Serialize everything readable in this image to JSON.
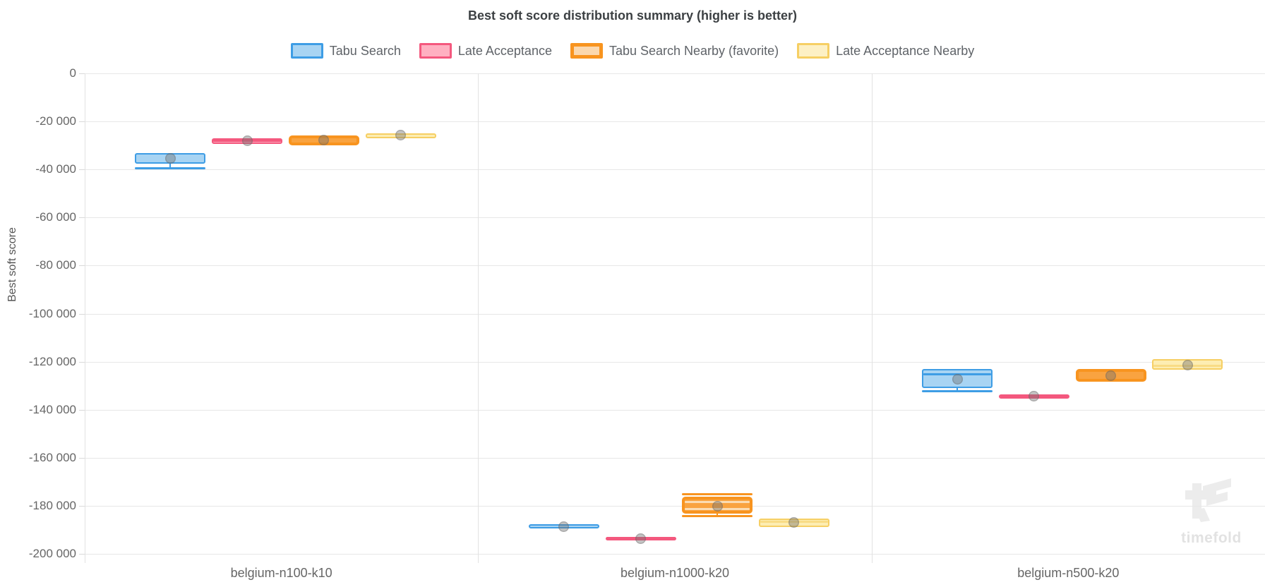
{
  "watermark": {
    "text": "timefold"
  },
  "chart_data": {
    "type": "boxplot",
    "title": "Best soft score distribution summary (higher is better)",
    "ylabel": "Best soft score",
    "xlabel": "",
    "ylim": [
      -200000,
      0
    ],
    "ytick_step": 20000,
    "ytick_labels": [
      "0",
      "-20 000",
      "-40 000",
      "-60 000",
      "-80 000",
      "-100 000",
      "-120 000",
      "-140 000",
      "-160 000",
      "-180 000",
      "-200 000"
    ],
    "grid": true,
    "legend_position": "top",
    "categories": [
      "belgium-n100-k10",
      "belgium-n1000-k20",
      "belgium-n500-k20"
    ],
    "series": [
      {
        "name": "Tabu Search",
        "border_color": "#3E9DE5",
        "fill_color": "#A8D4F3",
        "median_color": "#3E9DE5",
        "border_px": 2,
        "swatch_fill": "#A8D4F3",
        "swatch_border_px": 3
      },
      {
        "name": "Late Acceptance",
        "border_color": "#F4587E",
        "fill_color": "#FBA9BC",
        "median_color": "#F4587E",
        "border_px": 2,
        "swatch_fill": "#FFB0C1",
        "swatch_border_px": 3
      },
      {
        "name": "Tabu Search Nearby (favorite)",
        "border_color": "#F8941F",
        "fill_color": "#F9A340",
        "median_color": "#FBDCB2",
        "border_px": 4,
        "swatch_fill": "#FBD8AE",
        "swatch_border_px": 5
      },
      {
        "name": "Late Acceptance Nearby",
        "border_color": "#F6CF64",
        "fill_color": "#FDEDB2",
        "median_color": "#F8DC86",
        "border_px": 2,
        "swatch_fill": "#FDF0C4",
        "swatch_border_px": 3
      }
    ],
    "boxes": [
      {
        "category": "belgium-n100-k10",
        "series": "Tabu Search",
        "q3": -33100,
        "median": null,
        "q1": -37600,
        "whisker_max": null,
        "whisker_min": -39400,
        "inner_line": null,
        "mean": -35500
      },
      {
        "category": "belgium-n100-k10",
        "series": "Late Acceptance",
        "q3": -26900,
        "median": -28100,
        "q1": -29400,
        "whisker_max": null,
        "whisker_min": null,
        "inner_line": null,
        "mean": -28100
      },
      {
        "category": "belgium-n100-k10",
        "series": "Tabu Search Nearby (favorite)",
        "q3": -25900,
        "median": null,
        "q1": -30100,
        "whisker_max": null,
        "whisker_min": null,
        "inner_line": null,
        "mean": -27700
      },
      {
        "category": "belgium-n100-k10",
        "series": "Late Acceptance Nearby",
        "q3": -25000,
        "median": null,
        "q1": -26900,
        "whisker_max": null,
        "whisker_min": null,
        "inner_line": null,
        "mean": -25800
      },
      {
        "category": "belgium-n1000-k20",
        "series": "Tabu Search",
        "q3": -187700,
        "median": null,
        "q1": -189400,
        "whisker_max": null,
        "whisker_min": null,
        "inner_line": null,
        "mean": -188600
      },
      {
        "category": "belgium-n1000-k20",
        "series": "Late Acceptance",
        "q3": -192900,
        "median": -193700,
        "q1": -194500,
        "whisker_max": null,
        "whisker_min": null,
        "inner_line": null,
        "mean": -193700
      },
      {
        "category": "belgium-n1000-k20",
        "series": "Tabu Search Nearby (favorite)",
        "q3": -176300,
        "median": -178300,
        "q1": -183300,
        "whisker_max": -175100,
        "whisker_min": -184200,
        "inner_line": -181300,
        "mean": -180100
      },
      {
        "category": "belgium-n1000-k20",
        "series": "Late Acceptance Nearby",
        "q3": -185300,
        "median": -186700,
        "q1": -188700,
        "whisker_max": null,
        "whisker_min": null,
        "inner_line": null,
        "mean": -187000
      },
      {
        "category": "belgium-n500-k20",
        "series": "Tabu Search",
        "q3": -123200,
        "median": -125300,
        "q1": -131000,
        "whisker_max": null,
        "whisker_min": -132200,
        "inner_line": null,
        "mean": -127200
      },
      {
        "category": "belgium-n500-k20",
        "series": "Late Acceptance",
        "q3": -133500,
        "median": -134500,
        "q1": -135500,
        "whisker_max": null,
        "whisker_min": null,
        "inner_line": null,
        "mean": -134500
      },
      {
        "category": "belgium-n500-k20",
        "series": "Tabu Search Nearby (favorite)",
        "q3": -123000,
        "median": null,
        "q1": -128400,
        "whisker_max": null,
        "whisker_min": null,
        "inner_line": null,
        "mean": -125900
      },
      {
        "category": "belgium-n500-k20",
        "series": "Late Acceptance Nearby",
        "q3": -118900,
        "median": -121700,
        "q1": -123300,
        "whisker_max": null,
        "whisker_min": null,
        "inner_line": null,
        "mean": -121500
      }
    ]
  }
}
